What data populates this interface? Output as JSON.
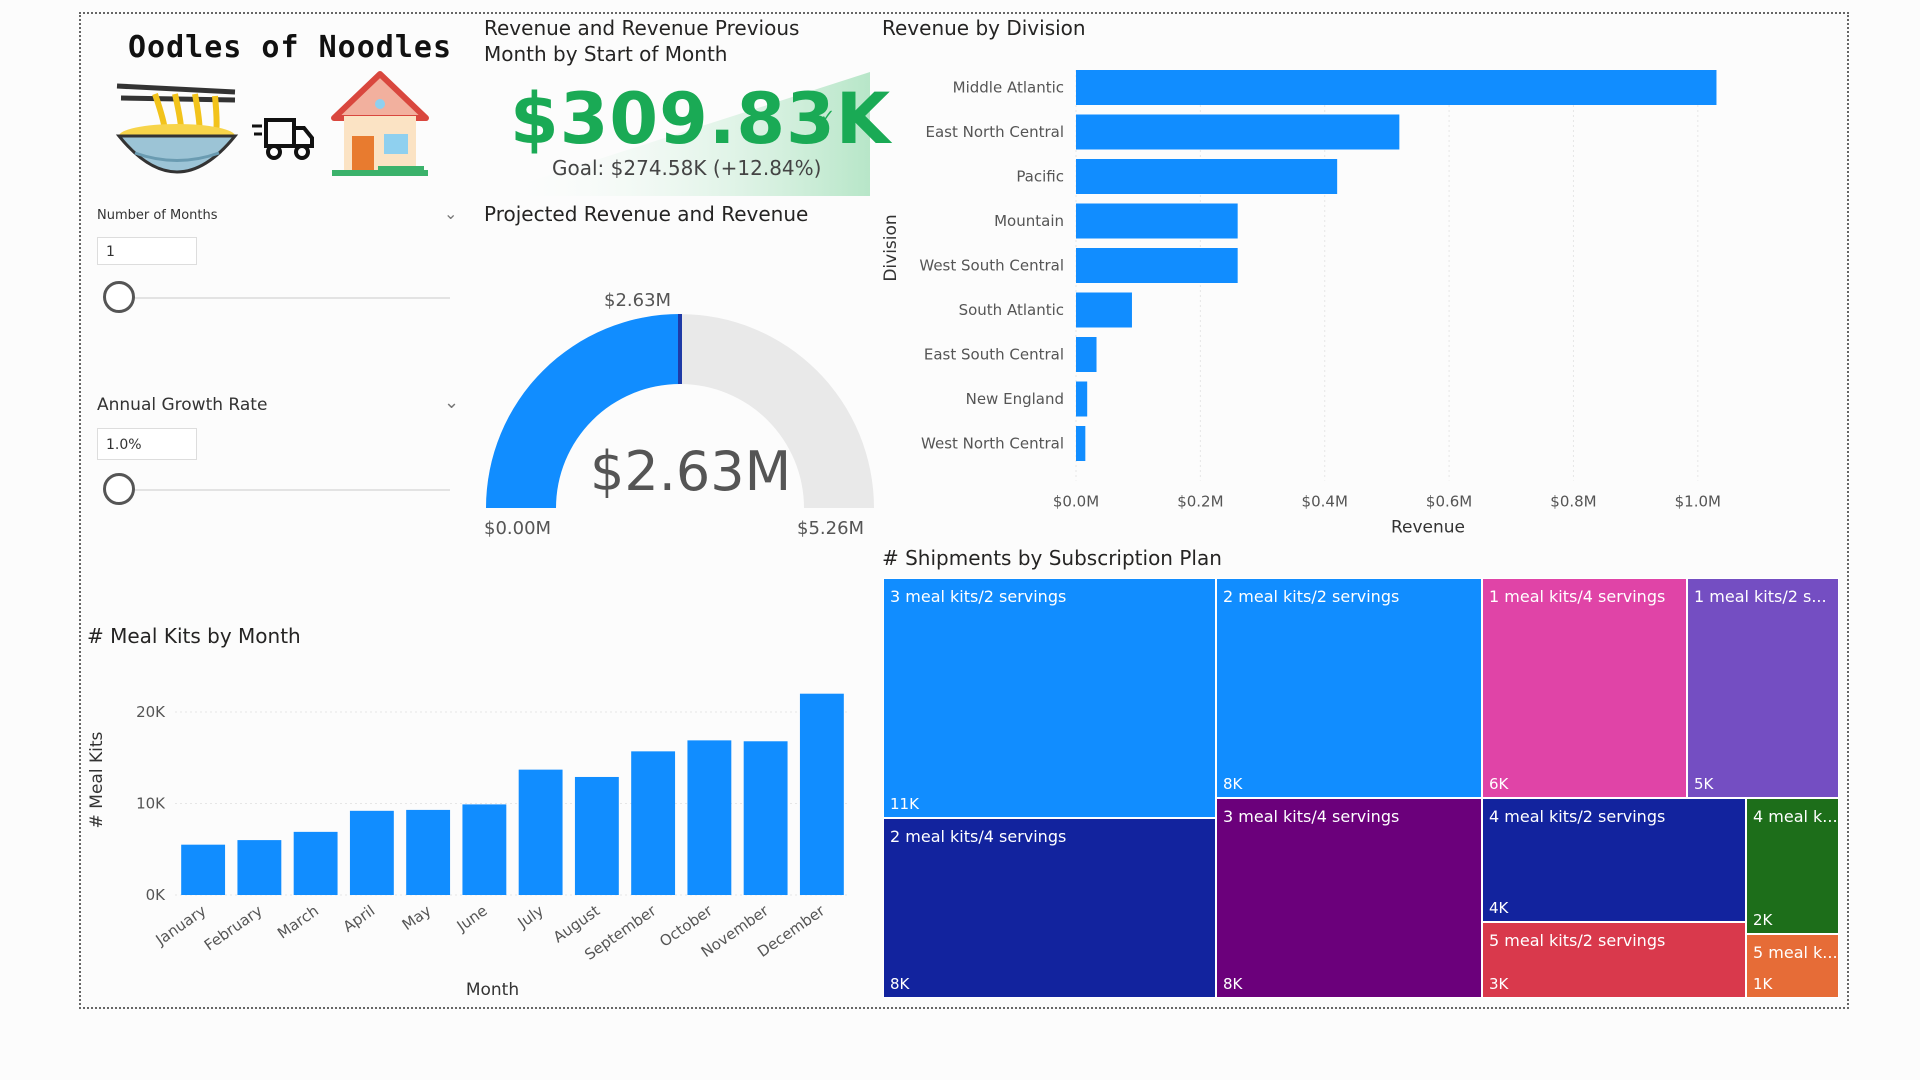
{
  "brand": {
    "title": "Oodles of Noodles"
  },
  "slicers": {
    "months": {
      "label": "Number of Months",
      "value": "1"
    },
    "growth": {
      "label": "Annual Growth Rate",
      "value": "1.0%"
    }
  },
  "kpi": {
    "title_line1": "Revenue and Revenue Previous",
    "title_line2": "Month by Start of Month",
    "value": "$309.83K",
    "goal": "Goal: $274.58K (+12.84%)",
    "color": "#1aaa55"
  },
  "gauge": {
    "title": "Projected Revenue and Revenue",
    "value_label": "$2.63M",
    "target_label": "$2.63M",
    "min_label": "$0.00M",
    "max_label": "$5.26M",
    "fraction": 0.5,
    "fill_color": "#118dff",
    "track_color": "#e9e9e9"
  },
  "division_chart": {
    "title": "Revenue by Division",
    "xlabel": "Revenue",
    "ylabel": "Division",
    "chart_data": {
      "type": "bar",
      "orientation": "horizontal",
      "categories": [
        "Middle Atlantic",
        "East North Central",
        "Pacific",
        "Mountain",
        "West South Central",
        "South Atlantic",
        "East South Central",
        "New England",
        "West North Central"
      ],
      "values": [
        1.03,
        0.52,
        0.42,
        0.26,
        0.26,
        0.09,
        0.033,
        0.018,
        0.015
      ],
      "xlim": [
        0,
        1.1
      ],
      "ticks": [
        0,
        0.2,
        0.4,
        0.6,
        0.8,
        1.0
      ],
      "tick_labels": [
        "$0.0M",
        "$0.2M",
        "$0.4M",
        "$0.6M",
        "$0.8M",
        "$1.0M"
      ],
      "color": "#118dff"
    }
  },
  "mealkits_chart": {
    "title": "# Meal Kits by Month",
    "xlabel": "Month",
    "ylabel": "# Meal Kits",
    "chart_data": {
      "type": "bar",
      "categories": [
        "January",
        "February",
        "March",
        "April",
        "May",
        "June",
        "July",
        "August",
        "September",
        "October",
        "November",
        "December"
      ],
      "values": [
        5500,
        6000,
        6900,
        9200,
        9300,
        9900,
        13700,
        12900,
        15700,
        16900,
        16800,
        22000
      ],
      "ylim": [
        0,
        22000
      ],
      "ticks": [
        0,
        10000,
        20000
      ],
      "tick_labels": [
        "0K",
        "10K",
        "20K"
      ],
      "color": "#118dff"
    }
  },
  "treemap": {
    "title": "# Shipments by Subscription Plan",
    "cells": [
      {
        "label": "3 meal kits/2 servings",
        "value": "11K",
        "color": "#118dff"
      },
      {
        "label": "2 meal kits/4 servings",
        "value": "8K",
        "color": "#12239e"
      },
      {
        "label": "2 meal kits/2 servings",
        "value": "8K",
        "color": "#118dff"
      },
      {
        "label": "3 meal kits/4 servings",
        "value": "8K",
        "color": "#6b007b"
      },
      {
        "label": "1 meal kits/4 servings",
        "value": "6K",
        "color": "#e044a7"
      },
      {
        "label": "1 meal kits/2 s...",
        "value": "5K",
        "color": "#744ec2"
      },
      {
        "label": "4 meal kits/2 servings",
        "value": "4K",
        "color": "#12239e"
      },
      {
        "label": "4 meal k...",
        "value": "2K",
        "color": "#1d6e1a"
      },
      {
        "label": "5 meal kits/2 servings",
        "value": "3K",
        "color": "#d9394c"
      },
      {
        "label": "5 meal k...",
        "value": "1K",
        "color": "#e66c37"
      }
    ]
  }
}
